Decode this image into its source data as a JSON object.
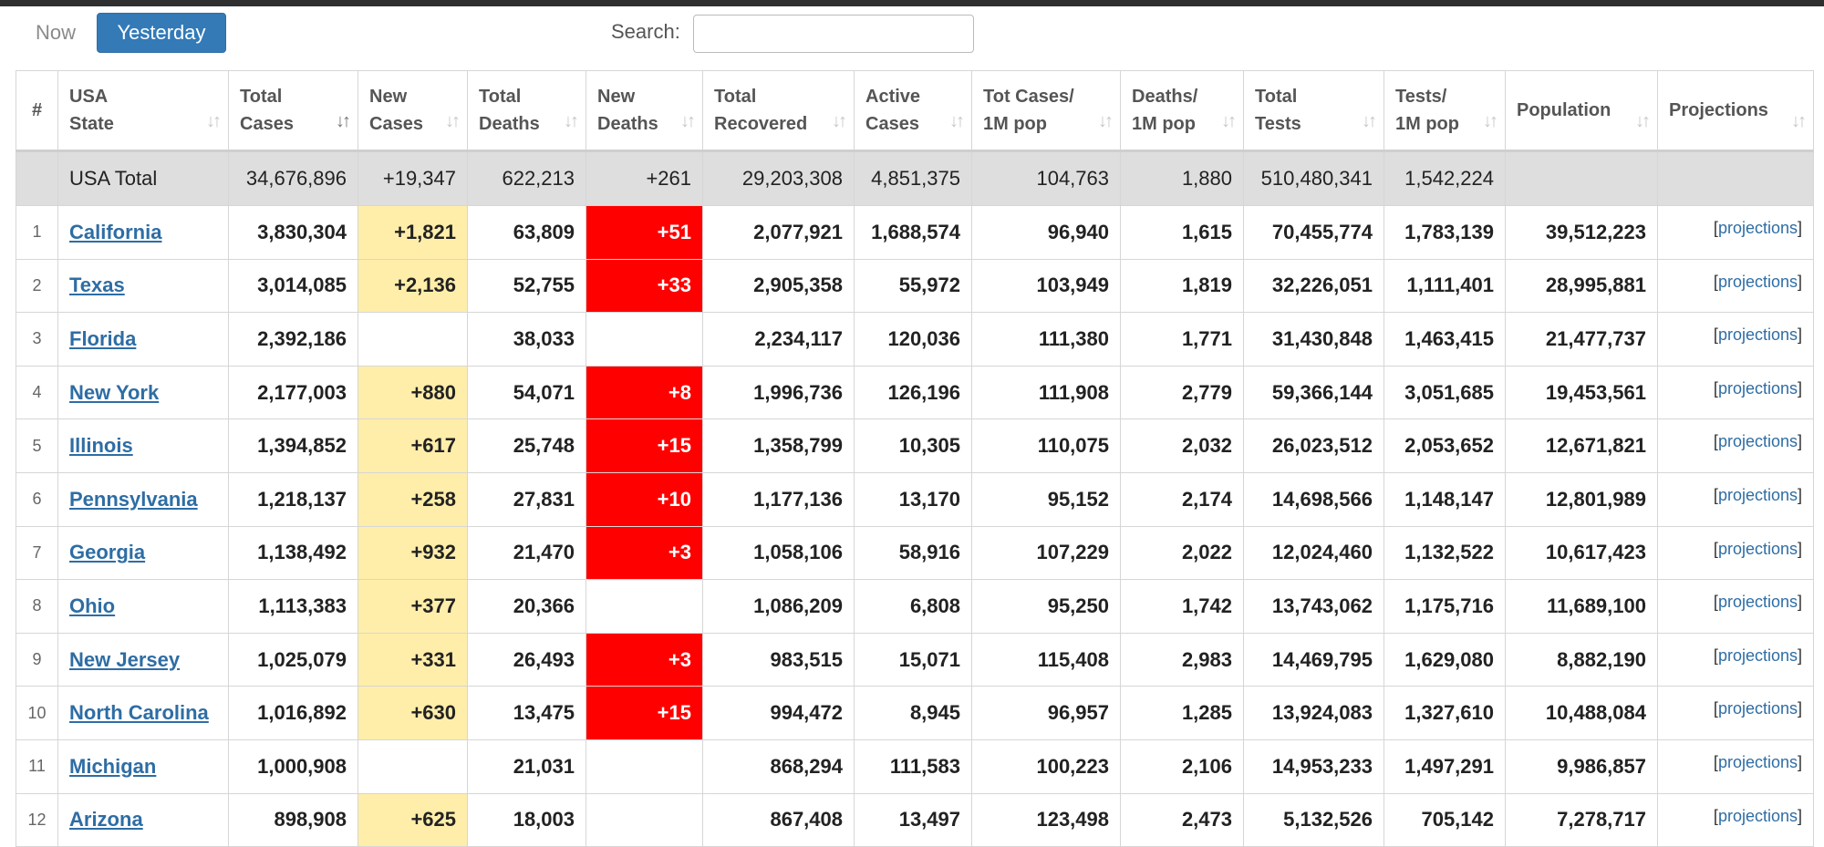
{
  "filters": {
    "now_label": "Now",
    "yesterday_label": "Yesterday"
  },
  "search": {
    "label": "Search:",
    "value": "",
    "placeholder": ""
  },
  "colors": {
    "accent": "#337ab7",
    "new_cases_highlight": "#ffeeaa",
    "new_deaths_highlight": "#ff0000",
    "link": "#2e6da4",
    "total_row_bg": "#dedede"
  },
  "columns": [
    {
      "line1": "#",
      "line2": ""
    },
    {
      "line1": "USA",
      "line2": "State"
    },
    {
      "line1": "Total",
      "line2": "Cases"
    },
    {
      "line1": "New",
      "line2": "Cases"
    },
    {
      "line1": "Total",
      "line2": "Deaths"
    },
    {
      "line1": "New",
      "line2": "Deaths"
    },
    {
      "line1": "Total",
      "line2": "Recovered"
    },
    {
      "line1": "Active",
      "line2": "Cases"
    },
    {
      "line1": "Tot Cases/",
      "line2": "1M pop"
    },
    {
      "line1": "Deaths/",
      "line2": "1M pop"
    },
    {
      "line1": "Total",
      "line2": "Tests"
    },
    {
      "line1": "Tests/",
      "line2": "1M pop"
    },
    {
      "line1": "",
      "line2": "Population"
    },
    {
      "line1": "",
      "line2": "Projections"
    }
  ],
  "sort_icon": {
    "name": "sort-arrows-icon",
    "glyph": "↓↑"
  },
  "total_row": {
    "state": "USA Total",
    "total_cases": "34,676,896",
    "new_cases": "+19,347",
    "total_deaths": "622,213",
    "new_deaths": "+261",
    "total_recovered": "29,203,308",
    "active_cases": "4,851,375",
    "cases_per_1m": "104,763",
    "deaths_per_1m": "1,880",
    "total_tests": "510,480,341",
    "tests_per_1m": "1,542,224",
    "population": "",
    "projections": ""
  },
  "projection_link": {
    "open": "[",
    "label": "projections",
    "close": "]"
  },
  "rows": [
    {
      "rank": "1",
      "state": "California",
      "total_cases": "3,830,304",
      "new_cases": "+1,821",
      "total_deaths": "63,809",
      "new_deaths": "+51",
      "total_recovered": "2,077,921",
      "active_cases": "1,688,574",
      "cases_per_1m": "96,940",
      "deaths_per_1m": "1,615",
      "total_tests": "70,455,774",
      "tests_per_1m": "1,783,139",
      "population": "39,512,223"
    },
    {
      "rank": "2",
      "state": "Texas",
      "total_cases": "3,014,085",
      "new_cases": "+2,136",
      "total_deaths": "52,755",
      "new_deaths": "+33",
      "total_recovered": "2,905,358",
      "active_cases": "55,972",
      "cases_per_1m": "103,949",
      "deaths_per_1m": "1,819",
      "total_tests": "32,226,051",
      "tests_per_1m": "1,111,401",
      "population": "28,995,881"
    },
    {
      "rank": "3",
      "state": "Florida",
      "total_cases": "2,392,186",
      "new_cases": "",
      "total_deaths": "38,033",
      "new_deaths": "",
      "total_recovered": "2,234,117",
      "active_cases": "120,036",
      "cases_per_1m": "111,380",
      "deaths_per_1m": "1,771",
      "total_tests": "31,430,848",
      "tests_per_1m": "1,463,415",
      "population": "21,477,737"
    },
    {
      "rank": "4",
      "state": "New York",
      "total_cases": "2,177,003",
      "new_cases": "+880",
      "total_deaths": "54,071",
      "new_deaths": "+8",
      "total_recovered": "1,996,736",
      "active_cases": "126,196",
      "cases_per_1m": "111,908",
      "deaths_per_1m": "2,779",
      "total_tests": "59,366,144",
      "tests_per_1m": "3,051,685",
      "population": "19,453,561"
    },
    {
      "rank": "5",
      "state": "Illinois",
      "total_cases": "1,394,852",
      "new_cases": "+617",
      "total_deaths": "25,748",
      "new_deaths": "+15",
      "total_recovered": "1,358,799",
      "active_cases": "10,305",
      "cases_per_1m": "110,075",
      "deaths_per_1m": "2,032",
      "total_tests": "26,023,512",
      "tests_per_1m": "2,053,652",
      "population": "12,671,821"
    },
    {
      "rank": "6",
      "state": "Pennsylvania",
      "total_cases": "1,218,137",
      "new_cases": "+258",
      "total_deaths": "27,831",
      "new_deaths": "+10",
      "total_recovered": "1,177,136",
      "active_cases": "13,170",
      "cases_per_1m": "95,152",
      "deaths_per_1m": "2,174",
      "total_tests": "14,698,566",
      "tests_per_1m": "1,148,147",
      "population": "12,801,989"
    },
    {
      "rank": "7",
      "state": "Georgia",
      "total_cases": "1,138,492",
      "new_cases": "+932",
      "total_deaths": "21,470",
      "new_deaths": "+3",
      "total_recovered": "1,058,106",
      "active_cases": "58,916",
      "cases_per_1m": "107,229",
      "deaths_per_1m": "2,022",
      "total_tests": "12,024,460",
      "tests_per_1m": "1,132,522",
      "population": "10,617,423"
    },
    {
      "rank": "8",
      "state": "Ohio",
      "total_cases": "1,113,383",
      "new_cases": "+377",
      "total_deaths": "20,366",
      "new_deaths": "",
      "total_recovered": "1,086,209",
      "active_cases": "6,808",
      "cases_per_1m": "95,250",
      "deaths_per_1m": "1,742",
      "total_tests": "13,743,062",
      "tests_per_1m": "1,175,716",
      "population": "11,689,100"
    },
    {
      "rank": "9",
      "state": "New Jersey",
      "total_cases": "1,025,079",
      "new_cases": "+331",
      "total_deaths": "26,493",
      "new_deaths": "+3",
      "total_recovered": "983,515",
      "active_cases": "15,071",
      "cases_per_1m": "115,408",
      "deaths_per_1m": "2,983",
      "total_tests": "14,469,795",
      "tests_per_1m": "1,629,080",
      "population": "8,882,190"
    },
    {
      "rank": "10",
      "state": "North Carolina",
      "total_cases": "1,016,892",
      "new_cases": "+630",
      "total_deaths": "13,475",
      "new_deaths": "+15",
      "total_recovered": "994,472",
      "active_cases": "8,945",
      "cases_per_1m": "96,957",
      "deaths_per_1m": "1,285",
      "total_tests": "13,924,083",
      "tests_per_1m": "1,327,610",
      "population": "10,488,084"
    },
    {
      "rank": "11",
      "state": "Michigan",
      "total_cases": "1,000,908",
      "new_cases": "",
      "total_deaths": "21,031",
      "new_deaths": "",
      "total_recovered": "868,294",
      "active_cases": "111,583",
      "cases_per_1m": "100,223",
      "deaths_per_1m": "2,106",
      "total_tests": "14,953,233",
      "tests_per_1m": "1,497,291",
      "population": "9,986,857"
    },
    {
      "rank": "12",
      "state": "Arizona",
      "total_cases": "898,908",
      "new_cases": "+625",
      "total_deaths": "18,003",
      "new_deaths": "",
      "total_recovered": "867,408",
      "active_cases": "13,497",
      "cases_per_1m": "123,498",
      "deaths_per_1m": "2,473",
      "total_tests": "5,132,526",
      "tests_per_1m": "705,142",
      "population": "7,278,717"
    }
  ]
}
